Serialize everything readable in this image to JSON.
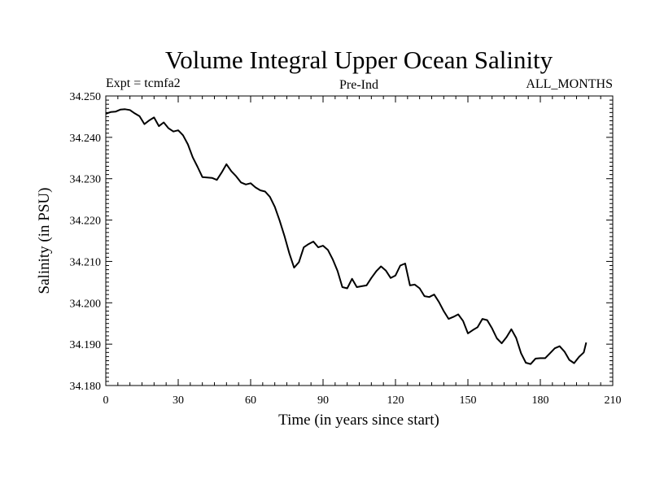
{
  "chart_data": {
    "type": "line",
    "title": "Volume Integral Upper Ocean Salinity",
    "subtitle_left": "Expt = tcmfa2",
    "subtitle_center": "Pre-Ind",
    "subtitle_right": "ALL_MONTHS",
    "xlabel": "Time (in years since start)",
    "ylabel": "Salinity (in PSU)",
    "xlim": [
      0,
      210
    ],
    "ylim": [
      34.18,
      34.25
    ],
    "x_ticks": [
      0,
      30,
      60,
      90,
      120,
      150,
      180,
      210
    ],
    "x_tick_labels": [
      "0",
      "30",
      "60",
      "90",
      "120",
      "150",
      "180",
      "210"
    ],
    "y_ticks": [
      34.18,
      34.19,
      34.2,
      34.21,
      34.22,
      34.23,
      34.24,
      34.25
    ],
    "y_tick_labels": [
      "34.180",
      "34.190",
      "34.200",
      "34.210",
      "34.220",
      "34.230",
      "34.240",
      "34.250"
    ],
    "x_minor_step": 5,
    "y_minor_step": 0.001,
    "series": [
      {
        "name": "salinity",
        "x": [
          0,
          2,
          4,
          6,
          8,
          10,
          12,
          14,
          16,
          18,
          20,
          22,
          24,
          26,
          28,
          30,
          32,
          34,
          36,
          38,
          40,
          42,
          44,
          46,
          48,
          50,
          52,
          54,
          56,
          58,
          60,
          62,
          64,
          66,
          68,
          70,
          72,
          74,
          76,
          78,
          80,
          82,
          84,
          86,
          88,
          90,
          92,
          94,
          96,
          98,
          100,
          102,
          104,
          106,
          108,
          110,
          112,
          114,
          116,
          118,
          120,
          122,
          124,
          126,
          128,
          130,
          132,
          134,
          136,
          138,
          140,
          142,
          144,
          146,
          148,
          150,
          152,
          154,
          156,
          158,
          160,
          162,
          164,
          166,
          168,
          170,
          172,
          174,
          176,
          178,
          180,
          182,
          184,
          186,
          188,
          190,
          192,
          194,
          196,
          198,
          199
        ],
        "y": [
          34.2457,
          34.2461,
          34.2462,
          34.2467,
          34.2468,
          34.2466,
          34.2458,
          34.2451,
          34.2432,
          34.2441,
          34.2448,
          34.2427,
          34.2436,
          34.2422,
          34.2414,
          34.2417,
          34.2405,
          34.2383,
          34.2352,
          34.2329,
          34.2304,
          34.2303,
          34.2302,
          34.2297,
          34.2315,
          34.2335,
          34.2318,
          34.2306,
          34.2291,
          34.2286,
          34.2289,
          34.2279,
          34.2272,
          34.2269,
          34.2256,
          34.2232,
          34.2199,
          34.2162,
          34.212,
          34.2085,
          34.2098,
          34.2134,
          34.2142,
          34.2148,
          34.2134,
          34.2138,
          34.2128,
          34.2105,
          34.2077,
          34.2038,
          34.2035,
          34.2058,
          34.2038,
          34.204,
          34.2042,
          34.206,
          34.2076,
          34.2088,
          34.2078,
          34.206,
          34.2066,
          34.209,
          34.2095,
          34.2042,
          34.2044,
          34.2035,
          34.2016,
          34.2014,
          34.202,
          34.2002,
          34.198,
          34.1961,
          34.1966,
          34.1972,
          34.1956,
          34.1926,
          34.1934,
          34.1941,
          34.1961,
          34.1958,
          34.1938,
          34.1914,
          34.1902,
          34.1917,
          34.1936,
          34.1915,
          34.1878,
          34.1855,
          34.1852,
          34.1865,
          34.1866,
          34.1866,
          34.1878,
          34.189,
          34.1895,
          34.1882,
          34.1862,
          34.1854,
          34.1869,
          34.188,
          34.1904
        ]
      }
    ]
  }
}
